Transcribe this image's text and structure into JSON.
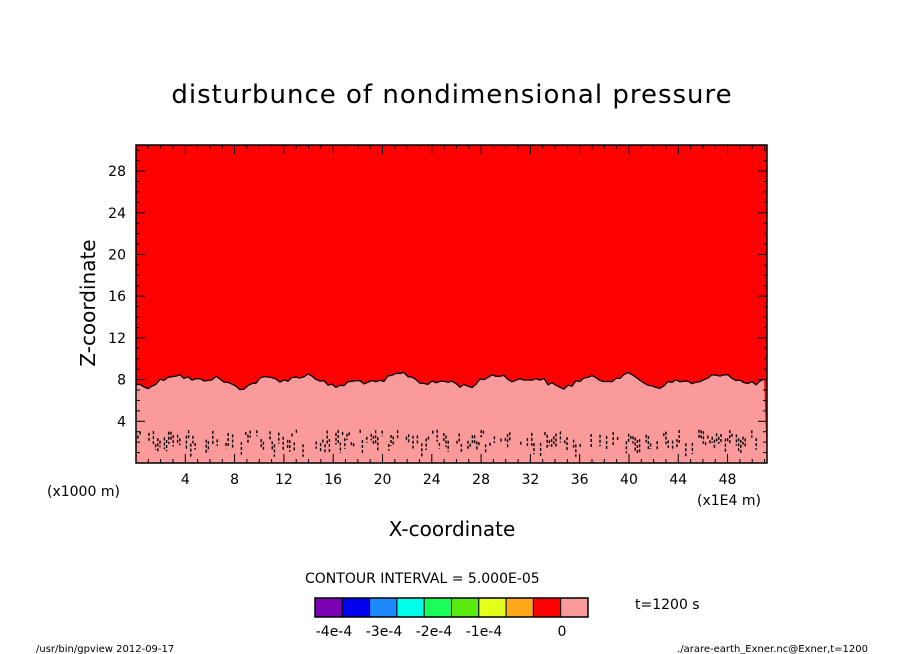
{
  "chart_data": {
    "type": "heatmap",
    "title": "disturbunce of nondimensional pressure",
    "xlabel": "X-coordinate",
    "ylabel": "Z-coordinate",
    "x_unit_note": "(x1E4 m)",
    "y_unit_note": "(x1000 m)",
    "xlim": [
      0,
      51.2
    ],
    "ylim": [
      0,
      30.5
    ],
    "x_ticks": [
      4,
      8,
      12,
      16,
      20,
      24,
      28,
      32,
      36,
      40,
      44,
      48
    ],
    "y_ticks": [
      4,
      8,
      12,
      16,
      20,
      24,
      28
    ],
    "x_tick_labels": [
      "4",
      "8",
      "12",
      "16",
      "20",
      "24",
      "28",
      "32",
      "36",
      "40",
      "44",
      "48"
    ],
    "y_tick_labels": [
      "4",
      "8",
      "12",
      "16",
      "20",
      "24",
      "28"
    ],
    "regions": [
      {
        "level": "0",
        "color": "#fe0000",
        "z_range": [
          7.9,
          30.5
        ]
      },
      {
        "level": "above 0",
        "color": "#fa9a9a",
        "z_range": [
          0,
          7.9
        ]
      }
    ],
    "boundary_contour_z": 7.9,
    "contour_interval": "CONTOUR INTERVAL = 5.000E-05",
    "time_label": "t=1200 s",
    "colorbar": {
      "colors": [
        "#7b00b3",
        "#0000ee",
        "#1e88ff",
        "#00ffe8",
        "#1aff5a",
        "#5aea10",
        "#e4ff1a",
        "#ffa81a",
        "#fe0000",
        "#fa9a9a"
      ],
      "labels": [
        "-4e-4",
        "-3e-4",
        "-2e-4",
        "-1e-4",
        "0"
      ]
    },
    "footer_left": "/usr/bin/gpview   2012-09-17",
    "footer_right": "./arare-earth_Exner.nc@Exner,t=1200"
  }
}
